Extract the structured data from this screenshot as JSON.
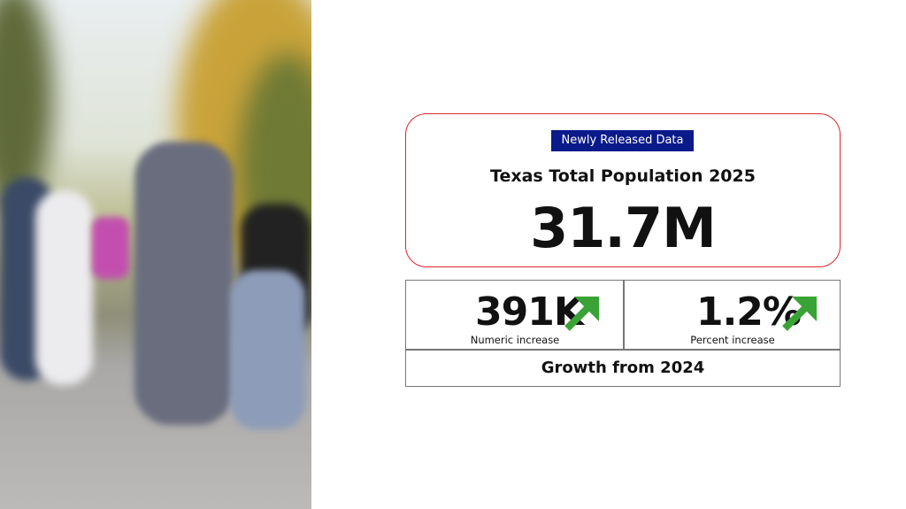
{
  "badge": "Newly Released Data",
  "headline": {
    "title": "Texas Total Population 2025",
    "value": "31.7M"
  },
  "stats": [
    {
      "value": "391K",
      "label": "Numeric increase"
    },
    {
      "value": "1.2%",
      "label": "Percent increase"
    }
  ],
  "footer": "Growth from 2024"
}
